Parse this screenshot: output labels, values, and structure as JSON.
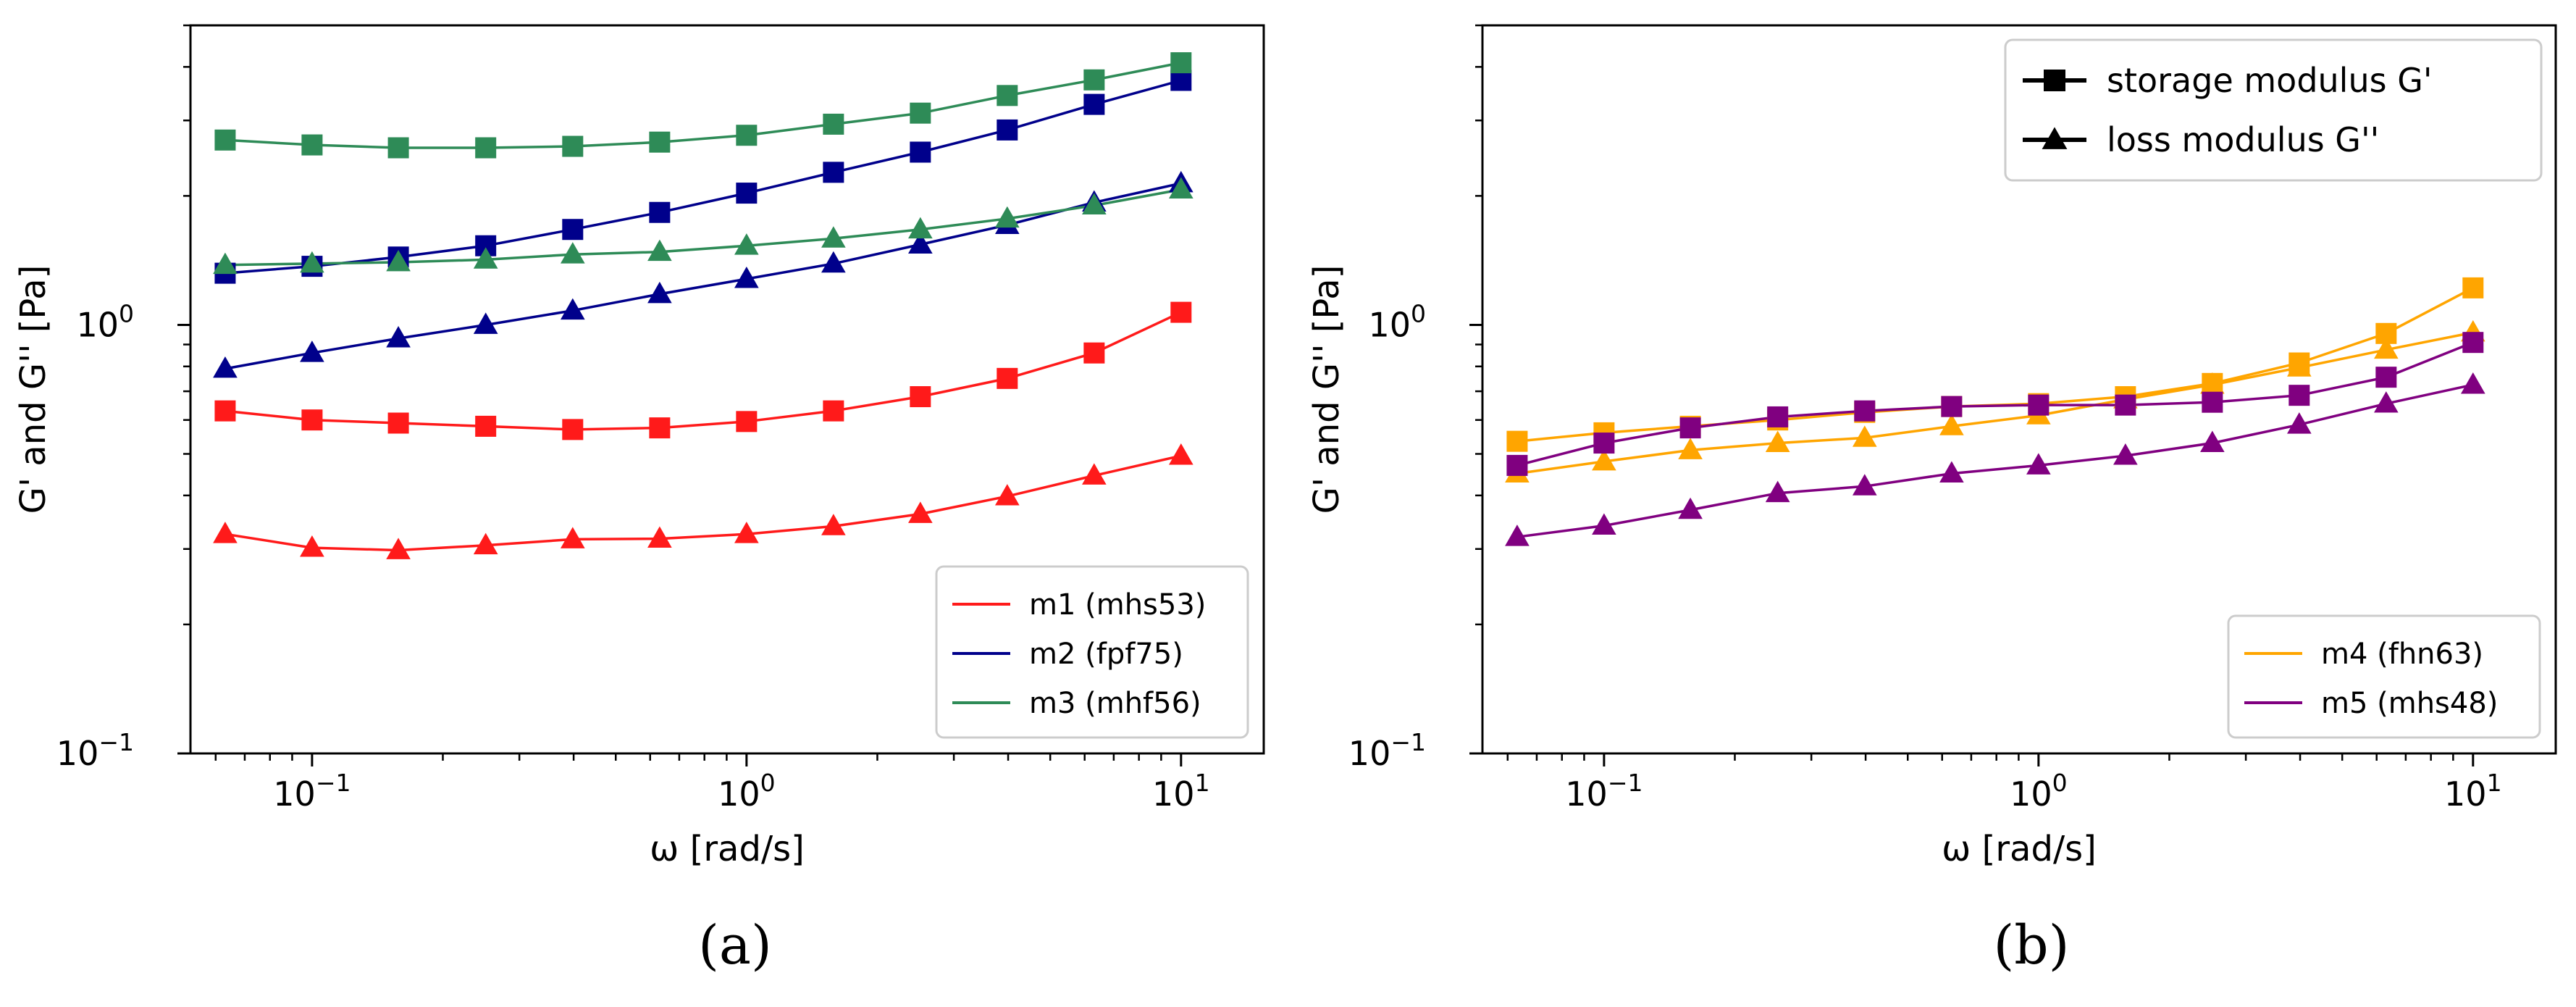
{
  "panel_labels": [
    "(a)",
    "(b)"
  ],
  "chart_data": [
    {
      "type": "line",
      "panel": "(a)",
      "xscale": "log",
      "yscale": "log",
      "xlabel": "ω [rad/s]",
      "ylabel": "G' and G'' [Pa]",
      "xlim": [
        0.0525,
        15.5
      ],
      "ylim": [
        0.1,
        5.0
      ],
      "xticks": [
        {
          "value": 0.1,
          "base": "10",
          "exp": "−1"
        },
        {
          "value": 1,
          "base": "10",
          "exp": "0"
        },
        {
          "value": 10,
          "base": "10",
          "exp": "1"
        }
      ],
      "yticks": [
        {
          "value": 0.1,
          "base": "10",
          "exp": "−1"
        },
        {
          "value": 1,
          "base": "10",
          "exp": "0"
        }
      ],
      "legend_position": "lower-right",
      "x": [
        0.0631,
        0.1,
        0.158,
        0.251,
        0.398,
        0.631,
        1.0,
        1.585,
        2.512,
        3.981,
        6.31,
        10.0
      ],
      "series": [
        {
          "name": "m1 (mhs53)",
          "color": "#ff1a1a",
          "quantity": "G'",
          "marker": "square",
          "values": [
            0.63,
            0.6,
            0.59,
            0.58,
            0.57,
            0.575,
            0.595,
            0.63,
            0.68,
            0.75,
            0.86,
            1.07
          ]
        },
        {
          "name": "m1 (mhs53)",
          "color": "#ff1a1a",
          "quantity": "G''",
          "marker": "triangle",
          "values": [
            0.325,
            0.302,
            0.298,
            0.306,
            0.316,
            0.317,
            0.325,
            0.339,
            0.362,
            0.398,
            0.445,
            0.495
          ]
        },
        {
          "name": "m2 (fpf75)",
          "color": "#00008b",
          "quantity": "G'",
          "marker": "square",
          "values": [
            1.32,
            1.37,
            1.44,
            1.53,
            1.67,
            1.83,
            2.03,
            2.27,
            2.53,
            2.85,
            3.27,
            3.72
          ]
        },
        {
          "name": "m2 (fpf75)",
          "color": "#00008b",
          "quantity": "G''",
          "marker": "triangle",
          "values": [
            0.79,
            0.86,
            0.93,
            1.0,
            1.08,
            1.18,
            1.28,
            1.39,
            1.54,
            1.71,
            1.93,
            2.14
          ]
        },
        {
          "name": "m3 (mhf56)",
          "color": "#2e8b57",
          "quantity": "G'",
          "marker": "square",
          "values": [
            2.7,
            2.63,
            2.59,
            2.59,
            2.61,
            2.67,
            2.77,
            2.94,
            3.12,
            3.43,
            3.73,
            4.09
          ]
        },
        {
          "name": "m3 (mhf56)",
          "color": "#2e8b57",
          "quantity": "G''",
          "marker": "triangle",
          "values": [
            1.38,
            1.39,
            1.4,
            1.42,
            1.46,
            1.48,
            1.53,
            1.59,
            1.67,
            1.77,
            1.9,
            2.07
          ]
        }
      ],
      "legend": [
        {
          "label": "m1 (mhs53)",
          "color": "#ff1a1a"
        },
        {
          "label": "m2 (fpf75)",
          "color": "#00008b"
        },
        {
          "label": "m3 (mhf56)",
          "color": "#2e8b57"
        }
      ]
    },
    {
      "type": "line",
      "panel": "(b)",
      "xscale": "log",
      "yscale": "log",
      "xlabel": "ω [rad/s]",
      "ylabel": "G' and G'' [Pa]",
      "xlim": [
        0.0525,
        15.5
      ],
      "ylim": [
        0.1,
        5.0
      ],
      "xticks": [
        {
          "value": 0.1,
          "base": "10",
          "exp": "−1"
        },
        {
          "value": 1,
          "base": "10",
          "exp": "0"
        },
        {
          "value": 10,
          "base": "10",
          "exp": "1"
        }
      ],
      "yticks": [
        {
          "value": 0.1,
          "base": "10",
          "exp": "−1"
        },
        {
          "value": 1,
          "base": "10",
          "exp": "0"
        }
      ],
      "legend_position": "lower-right",
      "marker_legend_position": "top-right",
      "x": [
        0.0631,
        0.1,
        0.158,
        0.251,
        0.398,
        0.631,
        1.0,
        1.585,
        2.512,
        3.981,
        6.31,
        10.0
      ],
      "series": [
        {
          "name": "m4 (fhn63)",
          "color": "#ffa500",
          "quantity": "G'",
          "marker": "square",
          "values": [
            0.535,
            0.56,
            0.58,
            0.6,
            0.625,
            0.645,
            0.655,
            0.68,
            0.73,
            0.815,
            0.955,
            1.22
          ]
        },
        {
          "name": "m4 (fhn63)",
          "color": "#ffa500",
          "quantity": "G''",
          "marker": "triangle",
          "values": [
            0.45,
            0.48,
            0.51,
            0.53,
            0.545,
            0.58,
            0.615,
            0.67,
            0.725,
            0.795,
            0.875,
            0.96
          ]
        },
        {
          "name": "m5 (mhs48)",
          "color": "#800080",
          "quantity": "G'",
          "marker": "square",
          "values": [
            0.47,
            0.53,
            0.575,
            0.61,
            0.63,
            0.645,
            0.65,
            0.65,
            0.66,
            0.685,
            0.755,
            0.91
          ]
        },
        {
          "name": "m5 (mhs48)",
          "color": "#800080",
          "quantity": "G''",
          "marker": "triangle",
          "values": [
            0.32,
            0.34,
            0.37,
            0.405,
            0.42,
            0.45,
            0.47,
            0.495,
            0.53,
            0.585,
            0.655,
            0.725
          ]
        }
      ],
      "legend": [
        {
          "label": "m4 (fhn63)",
          "color": "#ffa500"
        },
        {
          "label": "m5 (mhs48)",
          "color": "#800080"
        }
      ],
      "marker_legend": [
        {
          "label": "storage modulus G'",
          "marker": "square"
        },
        {
          "label": "loss modulus G''",
          "marker": "triangle"
        }
      ]
    }
  ]
}
